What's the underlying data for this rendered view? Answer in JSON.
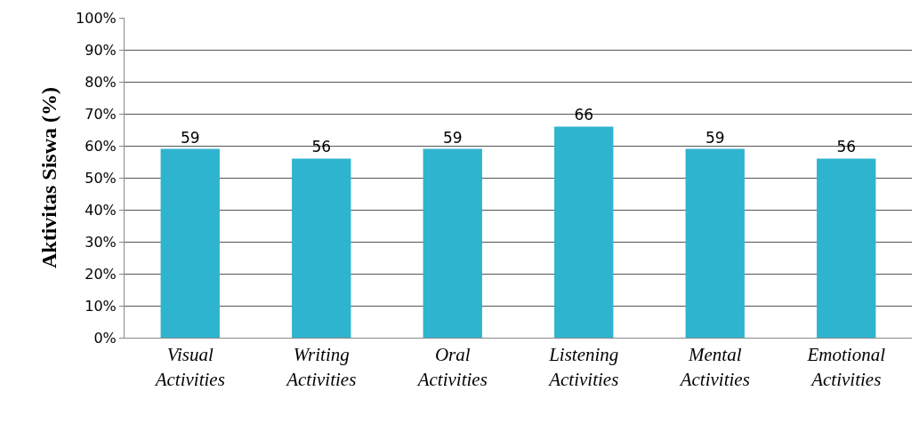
{
  "chart_data": {
    "type": "bar",
    "ylabel": "Aktivitas Siswa (%)",
    "categories": [
      "Visual Activities",
      "Writing Activities",
      "Oral Activities",
      "Listening Activities",
      "Mental Activities",
      "Emotional Activities"
    ],
    "values": [
      59,
      56,
      59,
      66,
      59,
      56
    ],
    "color": "#2fb4cf",
    "data_labels": true,
    "ylim": [
      0,
      100
    ],
    "yticks": [
      {
        "value": 0,
        "label": "0%"
      },
      {
        "value": 10,
        "label": "10%"
      },
      {
        "value": 20,
        "label": "20%"
      },
      {
        "value": 30,
        "label": "30%"
      },
      {
        "value": 40,
        "label": "40%"
      },
      {
        "value": 50,
        "label": "50%"
      },
      {
        "value": 60,
        "label": "60%"
      },
      {
        "value": 70,
        "label": "70%"
      },
      {
        "value": 80,
        "label": "80%"
      },
      {
        "value": 90,
        "label": "90%"
      },
      {
        "value": 100,
        "label": "100%"
      }
    ],
    "grid": "y"
  }
}
